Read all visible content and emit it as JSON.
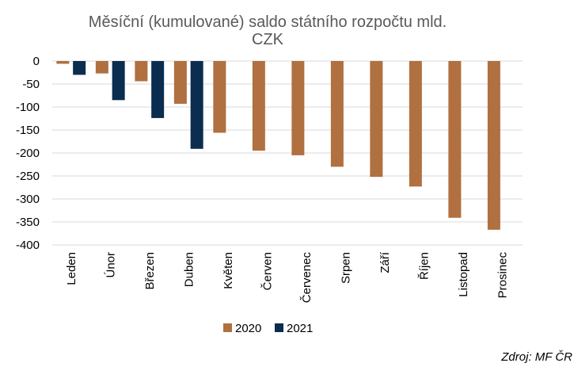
{
  "chart_data": {
    "type": "bar",
    "title_lines": [
      "Měsíční (kumulované) saldo státního rozpočtu mld.",
      "CZK"
    ],
    "categories": [
      "Leden",
      "Únor",
      "Březen",
      "Duben",
      "Květen",
      "Červen",
      "Červenec",
      "Srpen",
      "Září",
      "Říjen",
      "Listopad",
      "Prosinec"
    ],
    "series": [
      {
        "name": "2020",
        "color": "#B07040",
        "values": [
          -6,
          -27,
          -44,
          -93,
          -156,
          -195,
          -205,
          -230,
          -252,
          -273,
          -341,
          -367
        ]
      },
      {
        "name": "2021",
        "color": "#0B2D4F",
        "values": [
          -30,
          -85,
          -124,
          -191,
          null,
          null,
          null,
          null,
          null,
          null,
          null,
          null
        ]
      }
    ],
    "ylim": [
      -400,
      0
    ],
    "yticks": [
      0,
      -50,
      -100,
      -150,
      -200,
      -250,
      -300,
      -350,
      -400
    ],
    "grid": true,
    "legend_position": "bottom"
  },
  "source": "Zdroj: MF ČR"
}
